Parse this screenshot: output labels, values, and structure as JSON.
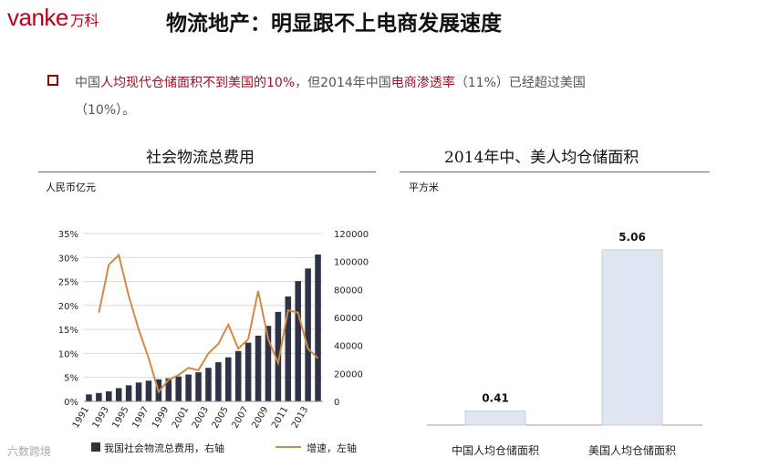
{
  "header": {
    "logo_text": "vanke",
    "logo_cn": "万科",
    "title": "物流地产：明显跟不上电商发展速度"
  },
  "bullet": {
    "part1": "中国",
    "part2": "人均现代仓储面积不到美国的10%",
    "part3": "，但2014年中国",
    "part4": "电商渗透率",
    "part5": "（11%）已经超过美国",
    "part6": "（10%）。"
  },
  "watermark": "六数跨境",
  "chart_data": [
    {
      "type": "bar+line",
      "title": "社会物流总费用",
      "unit": "人民币亿元",
      "years": [
        1991,
        1992,
        1993,
        1994,
        1995,
        1996,
        1997,
        1998,
        1999,
        2000,
        2001,
        2002,
        2003,
        2004,
        2005,
        2006,
        2007,
        2008,
        2009,
        2010,
        2011,
        2012,
        2013,
        2014
      ],
      "xtick_labels": [
        "1991",
        "1993",
        "1995",
        "1997",
        "1999",
        "2001",
        "2003",
        "2005",
        "2007",
        "2009",
        "2011",
        "2013"
      ],
      "left_axis": {
        "ticks": [
          "0%",
          "5%",
          "10%",
          "15%",
          "20%",
          "25%",
          "30%",
          "35%"
        ],
        "ylim": [
          0,
          35
        ]
      },
      "right_axis": {
        "ticks": [
          "0",
          "20000",
          "40000",
          "60000",
          "80000",
          "100000",
          "120000"
        ],
        "ylim": [
          0,
          120000
        ]
      },
      "series": [
        {
          "name": "我国社会物流总费用，右轴",
          "axis": "right",
          "type": "bar",
          "color": "#2e3347",
          "values": [
            5000,
            6000,
            7200,
            9500,
            11500,
            13500,
            14800,
            15800,
            16500,
            17800,
            19200,
            20800,
            24000,
            28000,
            31500,
            36000,
            42000,
            47000,
            54000,
            64000,
            75000,
            86000,
            95000,
            105000
          ]
        },
        {
          "name": "增速，左轴",
          "axis": "left",
          "type": "line",
          "color": "#d08a45",
          "values": [
            null,
            18.5,
            28.5,
            30.5,
            22,
            15,
            9,
            2,
            4.5,
            5.5,
            7,
            6.5,
            10,
            12,
            16,
            11,
            13,
            23,
            13,
            8,
            19,
            18.5,
            11,
            9
          ]
        }
      ],
      "legend": [
        "我国社会物流总费用，右轴",
        "增速，左轴"
      ]
    },
    {
      "type": "bar",
      "title": "2014年中、美人均仓储面积",
      "unit": "平方米",
      "categories": [
        "中国人均仓储面积",
        "美国人均仓储面积"
      ],
      "values": [
        0.41,
        5.06
      ],
      "value_labels": [
        "0.41",
        "5.06"
      ],
      "color": "#dfe6f2"
    }
  ]
}
